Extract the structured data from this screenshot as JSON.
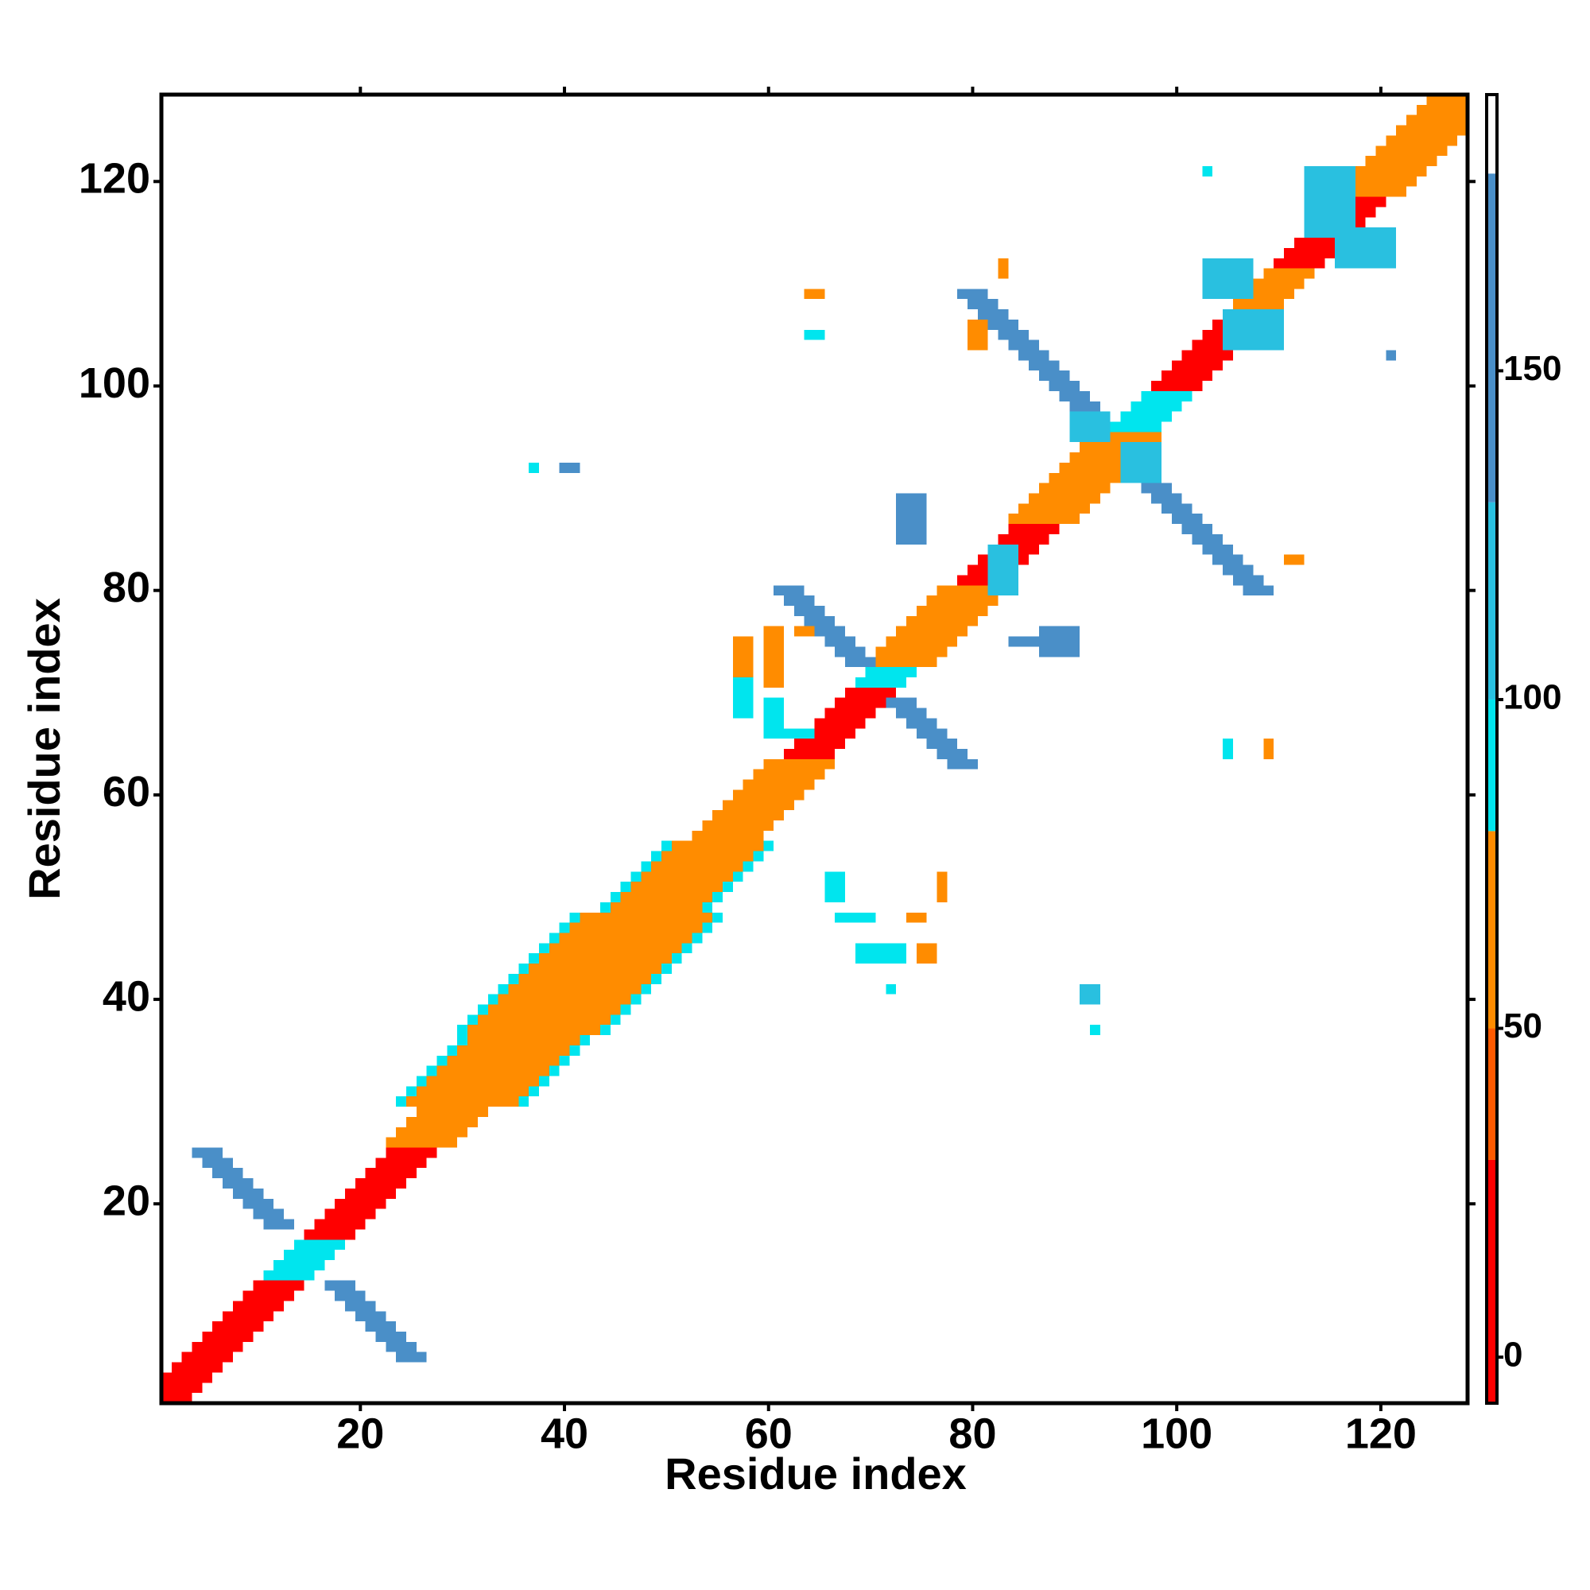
{
  "chart_data": {
    "type": "heatmap",
    "xlabel": "Residue index",
    "ylabel": "Residue index",
    "xlim": [
      0.5,
      128.5
    ],
    "ylim": [
      0.5,
      128.5
    ],
    "xticks": [
      20,
      40,
      60,
      80,
      100,
      120
    ],
    "yticks": [
      20,
      40,
      60,
      80,
      100,
      120
    ],
    "colorbar": {
      "bounds": [
        -7,
        30,
        50,
        80,
        100,
        130,
        180,
        192
      ],
      "colors": [
        "#ff0000",
        "#ff5a00",
        "#ff8c00",
        "#00e5ee",
        "#29c0e0",
        "#4a8fc8",
        "#ffffff"
      ],
      "ticks": [
        0,
        50,
        100,
        150
      ]
    },
    "cells": [
      [
        1,
        3,
        1,
        1,
        10
      ],
      [
        1,
        4,
        2,
        2,
        10
      ],
      [
        1,
        5,
        3,
        3,
        10
      ],
      [
        2,
        6,
        4,
        4,
        10
      ],
      [
        3,
        7,
        5,
        5,
        10
      ],
      [
        4,
        8,
        6,
        6,
        10
      ],
      [
        5,
        9,
        7,
        7,
        10
      ],
      [
        6,
        10,
        8,
        8,
        10
      ],
      [
        7,
        11,
        9,
        9,
        10
      ],
      [
        8,
        12,
        10,
        10,
        10
      ],
      [
        9,
        13,
        11,
        11,
        10
      ],
      [
        10,
        14,
        12,
        12,
        10
      ],
      [
        11,
        15,
        13,
        13,
        95
      ],
      [
        12,
        16,
        14,
        14,
        95
      ],
      [
        13,
        17,
        15,
        15,
        95
      ],
      [
        14,
        18,
        16,
        16,
        95
      ],
      [
        15,
        19,
        17,
        17,
        10
      ],
      [
        16,
        20,
        18,
        18,
        10
      ],
      [
        17,
        21,
        19,
        19,
        10
      ],
      [
        18,
        22,
        20,
        20,
        10
      ],
      [
        19,
        23,
        21,
        21,
        10
      ],
      [
        20,
        24,
        22,
        22,
        10
      ],
      [
        21,
        25,
        23,
        23,
        10
      ],
      [
        22,
        26,
        24,
        24,
        10
      ],
      [
        23,
        27,
        25,
        25,
        10
      ],
      [
        23,
        29,
        26,
        26,
        60
      ],
      [
        24,
        30,
        27,
        27,
        60
      ],
      [
        25,
        31,
        28,
        28,
        60
      ],
      [
        26,
        32,
        29,
        29,
        60
      ],
      [
        24,
        36,
        30,
        30,
        95
      ],
      [
        25,
        37,
        31,
        31,
        95
      ],
      [
        26,
        38,
        32,
        32,
        95
      ],
      [
        27,
        39,
        33,
        33,
        95
      ],
      [
        28,
        40,
        34,
        34,
        95
      ],
      [
        29,
        41,
        35,
        35,
        95
      ],
      [
        30,
        42,
        36,
        36,
        95
      ],
      [
        30,
        44,
        37,
        37,
        95
      ],
      [
        31,
        45,
        38,
        38,
        95
      ],
      [
        32,
        46,
        39,
        39,
        95
      ],
      [
        33,
        47,
        40,
        40,
        95
      ],
      [
        34,
        48,
        41,
        41,
        95
      ],
      [
        35,
        49,
        42,
        42,
        95
      ],
      [
        36,
        50,
        43,
        43,
        95
      ],
      [
        37,
        51,
        44,
        44,
        95
      ],
      [
        38,
        52,
        45,
        45,
        95
      ],
      [
        39,
        53,
        46,
        46,
        95
      ],
      [
        40,
        54,
        47,
        47,
        95
      ],
      [
        41,
        55,
        48,
        48,
        95
      ],
      [
        44,
        54,
        49,
        49,
        95
      ],
      [
        45,
        55,
        50,
        50,
        95
      ],
      [
        46,
        56,
        51,
        51,
        95
      ],
      [
        47,
        57,
        52,
        52,
        95
      ],
      [
        48,
        58,
        53,
        53,
        95
      ],
      [
        49,
        59,
        54,
        54,
        95
      ],
      [
        50,
        60,
        55,
        55,
        95
      ],
      [
        25,
        35,
        30,
        30,
        60
      ],
      [
        26,
        36,
        31,
        31,
        60
      ],
      [
        27,
        37,
        32,
        32,
        60
      ],
      [
        28,
        38,
        33,
        33,
        60
      ],
      [
        29,
        39,
        34,
        34,
        60
      ],
      [
        30,
        40,
        35,
        35,
        60
      ],
      [
        31,
        41,
        36,
        36,
        60
      ],
      [
        31,
        43,
        37,
        37,
        60
      ],
      [
        32,
        44,
        38,
        38,
        60
      ],
      [
        33,
        45,
        39,
        39,
        60
      ],
      [
        34,
        46,
        40,
        40,
        60
      ],
      [
        35,
        47,
        41,
        41,
        60
      ],
      [
        36,
        48,
        42,
        42,
        60
      ],
      [
        37,
        49,
        43,
        43,
        60
      ],
      [
        38,
        50,
        44,
        44,
        60
      ],
      [
        39,
        51,
        45,
        45,
        60
      ],
      [
        40,
        52,
        46,
        46,
        60
      ],
      [
        41,
        53,
        47,
        47,
        60
      ],
      [
        42,
        54,
        48,
        48,
        60
      ],
      [
        45,
        53,
        49,
        49,
        60
      ],
      [
        46,
        54,
        50,
        50,
        60
      ],
      [
        47,
        55,
        51,
        51,
        60
      ],
      [
        48,
        56,
        52,
        52,
        60
      ],
      [
        49,
        57,
        53,
        53,
        60
      ],
      [
        50,
        58,
        54,
        54,
        60
      ],
      [
        51,
        59,
        55,
        55,
        60
      ],
      [
        53,
        59,
        56,
        56,
        60
      ],
      [
        54,
        60,
        57,
        57,
        60
      ],
      [
        55,
        61,
        58,
        58,
        60
      ],
      [
        56,
        62,
        59,
        59,
        60
      ],
      [
        57,
        63,
        60,
        60,
        60
      ],
      [
        58,
        64,
        61,
        61,
        60
      ],
      [
        59,
        65,
        62,
        62,
        60
      ],
      [
        60,
        66,
        63,
        63,
        60
      ],
      [
        62,
        66,
        64,
        64,
        10
      ],
      [
        63,
        67,
        65,
        65,
        10
      ],
      [
        64,
        68,
        66,
        66,
        10
      ],
      [
        65,
        69,
        67,
        67,
        10
      ],
      [
        66,
        70,
        68,
        68,
        10
      ],
      [
        67,
        71,
        69,
        69,
        10
      ],
      [
        68,
        72,
        70,
        70,
        10
      ],
      [
        69,
        73,
        71,
        71,
        95
      ],
      [
        70,
        74,
        72,
        72,
        95
      ],
      [
        70,
        76,
        73,
        73,
        60
      ],
      [
        71,
        77,
        74,
        74,
        60
      ],
      [
        72,
        78,
        75,
        75,
        60
      ],
      [
        73,
        79,
        76,
        76,
        60
      ],
      [
        74,
        80,
        77,
        77,
        60
      ],
      [
        75,
        81,
        78,
        78,
        60
      ],
      [
        76,
        82,
        79,
        79,
        60
      ],
      [
        77,
        83,
        80,
        80,
        60
      ],
      [
        79,
        83,
        81,
        81,
        10
      ],
      [
        80,
        84,
        82,
        82,
        10
      ],
      [
        81,
        85,
        83,
        83,
        10
      ],
      [
        82,
        86,
        84,
        84,
        10
      ],
      [
        83,
        87,
        85,
        85,
        10
      ],
      [
        84,
        88,
        86,
        86,
        10
      ],
      [
        84,
        90,
        87,
        87,
        60
      ],
      [
        85,
        91,
        88,
        88,
        60
      ],
      [
        86,
        92,
        89,
        89,
        60
      ],
      [
        87,
        93,
        90,
        90,
        60
      ],
      [
        88,
        94,
        91,
        91,
        60
      ],
      [
        89,
        95,
        92,
        92,
        60
      ],
      [
        90,
        96,
        93,
        93,
        60
      ],
      [
        91,
        97,
        94,
        94,
        60
      ],
      [
        92,
        98,
        95,
        95,
        60
      ],
      [
        94,
        98,
        96,
        96,
        95
      ],
      [
        95,
        99,
        97,
        97,
        95
      ],
      [
        96,
        100,
        98,
        98,
        95
      ],
      [
        97,
        101,
        99,
        99,
        95
      ],
      [
        98,
        102,
        100,
        100,
        10
      ],
      [
        99,
        103,
        101,
        101,
        10
      ],
      [
        100,
        104,
        102,
        102,
        10
      ],
      [
        101,
        105,
        103,
        103,
        10
      ],
      [
        102,
        106,
        104,
        104,
        10
      ],
      [
        103,
        107,
        105,
        105,
        10
      ],
      [
        104,
        108,
        106,
        106,
        10
      ],
      [
        105,
        109,
        107,
        107,
        60
      ],
      [
        106,
        110,
        108,
        108,
        60
      ],
      [
        107,
        111,
        109,
        109,
        60
      ],
      [
        108,
        112,
        110,
        110,
        60
      ],
      [
        109,
        113,
        111,
        111,
        60
      ],
      [
        110,
        114,
        112,
        112,
        10
      ],
      [
        111,
        115,
        113,
        113,
        10
      ],
      [
        112,
        116,
        114,
        114,
        10
      ],
      [
        113,
        117,
        115,
        115,
        10
      ],
      [
        114,
        118,
        116,
        116,
        10
      ],
      [
        115,
        119,
        117,
        117,
        10
      ],
      [
        116,
        120,
        118,
        118,
        10
      ],
      [
        116,
        122,
        119,
        119,
        60
      ],
      [
        117,
        123,
        120,
        120,
        60
      ],
      [
        118,
        124,
        121,
        121,
        60
      ],
      [
        119,
        125,
        122,
        122,
        60
      ],
      [
        120,
        126,
        123,
        123,
        60
      ],
      [
        121,
        127,
        124,
        124,
        60
      ],
      [
        122,
        128,
        125,
        125,
        60
      ],
      [
        123,
        128,
        126,
        126,
        60
      ],
      [
        124,
        128,
        127,
        127,
        60
      ],
      [
        125,
        128,
        128,
        128,
        60
      ],
      [
        24,
        26,
        5,
        5,
        160
      ],
      [
        23,
        25,
        6,
        6,
        160
      ],
      [
        22,
        24,
        7,
        7,
        160
      ],
      [
        21,
        23,
        8,
        8,
        160
      ],
      [
        20,
        22,
        9,
        9,
        160
      ],
      [
        19,
        21,
        10,
        10,
        160
      ],
      [
        18,
        20,
        11,
        11,
        160
      ],
      [
        17,
        19,
        12,
        12,
        160
      ],
      [
        11,
        13,
        18,
        18,
        160
      ],
      [
        10,
        12,
        19,
        19,
        160
      ],
      [
        9,
        11,
        20,
        20,
        160
      ],
      [
        8,
        10,
        21,
        21,
        160
      ],
      [
        7,
        9,
        22,
        22,
        160
      ],
      [
        6,
        8,
        23,
        23,
        160
      ],
      [
        5,
        7,
        24,
        24,
        160
      ],
      [
        4,
        6,
        25,
        25,
        160
      ],
      [
        78,
        80,
        63,
        63,
        160
      ],
      [
        77,
        79,
        64,
        64,
        160
      ],
      [
        76,
        78,
        65,
        65,
        160
      ],
      [
        75,
        77,
        66,
        66,
        160
      ],
      [
        74,
        76,
        67,
        67,
        160
      ],
      [
        73,
        75,
        68,
        68,
        160
      ],
      [
        72,
        74,
        69,
        69,
        160
      ],
      [
        68,
        70,
        73,
        73,
        160
      ],
      [
        67,
        69,
        74,
        74,
        160
      ],
      [
        66,
        68,
        75,
        75,
        160
      ],
      [
        65,
        67,
        76,
        76,
        160
      ],
      [
        64,
        66,
        77,
        77,
        160
      ],
      [
        63,
        65,
        78,
        78,
        160
      ],
      [
        62,
        64,
        79,
        79,
        160
      ],
      [
        61,
        63,
        80,
        80,
        160
      ],
      [
        91,
        93,
        97,
        97,
        160
      ],
      [
        90,
        92,
        98,
        98,
        160
      ],
      [
        89,
        91,
        99,
        99,
        160
      ],
      [
        88,
        90,
        100,
        100,
        160
      ],
      [
        87,
        89,
        101,
        101,
        160
      ],
      [
        86,
        88,
        102,
        102,
        160
      ],
      [
        85,
        87,
        103,
        103,
        160
      ],
      [
        84,
        86,
        104,
        104,
        160
      ],
      [
        83,
        85,
        105,
        105,
        160
      ],
      [
        82,
        84,
        106,
        106,
        160
      ],
      [
        81,
        83,
        107,
        107,
        160
      ],
      [
        80,
        82,
        108,
        108,
        160
      ],
      [
        79,
        81,
        109,
        109,
        160
      ],
      [
        107,
        109,
        80,
        80,
        160
      ],
      [
        106,
        108,
        81,
        81,
        160
      ],
      [
        105,
        107,
        82,
        82,
        160
      ],
      [
        104,
        106,
        83,
        83,
        160
      ],
      [
        103,
        105,
        84,
        84,
        160
      ],
      [
        102,
        104,
        85,
        85,
        160
      ],
      [
        101,
        103,
        86,
        86,
        160
      ],
      [
        100,
        102,
        87,
        87,
        160
      ],
      [
        99,
        101,
        88,
        88,
        160
      ],
      [
        98,
        100,
        89,
        89,
        160
      ],
      [
        97,
        99,
        90,
        90,
        160
      ],
      [
        90,
        93,
        95,
        97,
        120
      ],
      [
        95,
        98,
        91,
        94,
        120
      ],
      [
        103,
        107,
        109,
        112,
        120
      ],
      [
        105,
        110,
        104,
        107,
        120
      ],
      [
        113,
        117,
        115,
        121,
        120
      ],
      [
        116,
        121,
        112,
        115,
        120
      ],
      [
        80,
        81,
        104,
        106,
        60
      ],
      [
        64,
        65,
        109,
        109,
        60
      ],
      [
        64,
        65,
        105,
        105,
        95
      ],
      [
        83,
        83,
        111,
        112,
        60
      ],
      [
        37,
        37,
        92,
        92,
        95
      ],
      [
        40,
        41,
        92,
        92,
        160
      ],
      [
        57,
        58,
        72,
        75,
        60
      ],
      [
        57,
        58,
        68,
        71,
        95
      ],
      [
        60,
        61,
        71,
        76,
        60
      ],
      [
        63,
        64,
        76,
        76,
        60
      ],
      [
        60,
        61,
        66,
        69,
        95
      ],
      [
        62,
        64,
        66,
        66,
        95
      ],
      [
        66,
        67,
        50,
        52,
        95
      ],
      [
        67,
        70,
        48,
        48,
        95
      ],
      [
        69,
        72,
        44,
        45,
        95
      ],
      [
        72,
        73,
        44,
        45,
        95
      ],
      [
        74,
        75,
        48,
        48,
        60
      ],
      [
        75,
        76,
        44,
        45,
        60
      ],
      [
        77,
        77,
        50,
        52,
        60
      ],
      [
        72,
        72,
        41,
        41,
        95
      ],
      [
        91,
        92,
        40,
        41,
        120
      ],
      [
        92,
        92,
        37,
        37,
        95
      ],
      [
        87,
        90,
        74,
        76,
        160
      ],
      [
        84,
        86,
        75,
        75,
        160
      ],
      [
        73,
        75,
        85,
        89,
        160
      ],
      [
        82,
        84,
        80,
        84,
        120
      ],
      [
        105,
        105,
        64,
        65,
        95
      ],
      [
        109,
        109,
        64,
        65,
        60
      ],
      [
        111,
        112,
        83,
        83,
        60
      ],
      [
        121,
        121,
        103,
        103,
        160
      ],
      [
        103,
        103,
        121,
        121,
        95
      ]
    ]
  }
}
